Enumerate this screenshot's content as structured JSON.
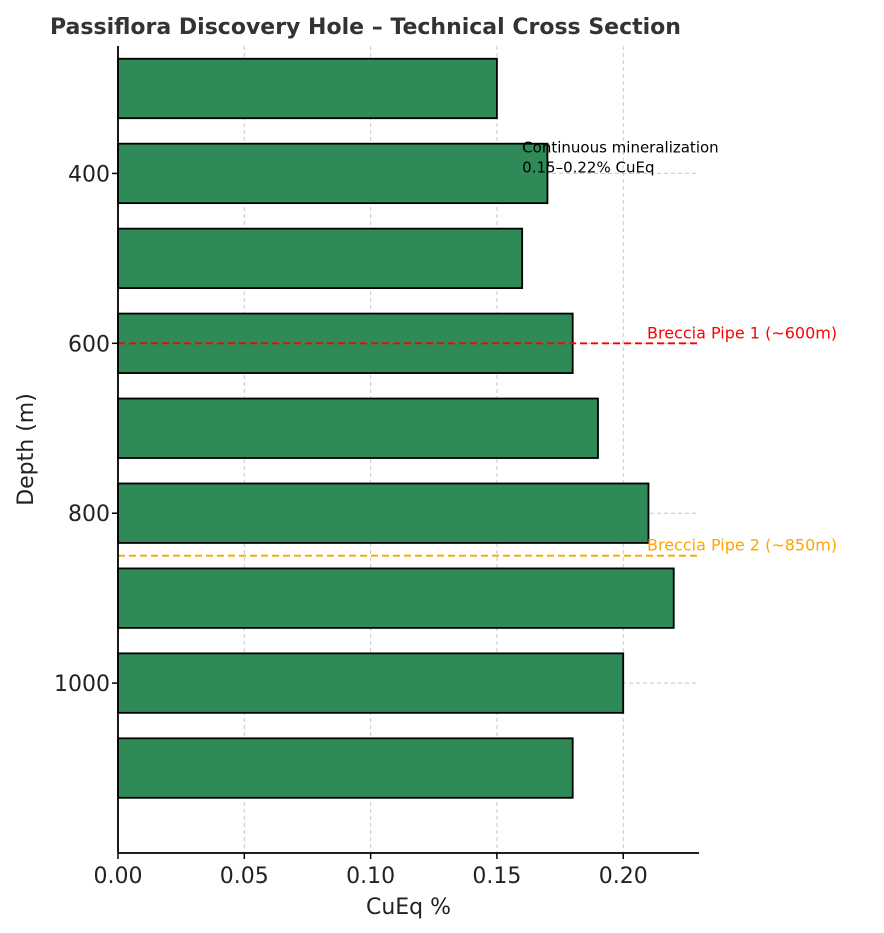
{
  "chart_data": {
    "type": "bar",
    "orientation": "horizontal",
    "title": "Passiflora Discovery Hole – Technical Cross Section",
    "xlabel": "CuEq %",
    "ylabel": "Depth (m)",
    "xlim": [
      0,
      0.23
    ],
    "ylim": [
      1200,
      250
    ],
    "y_inverted": true,
    "x_ticks": [
      "0.00",
      "0.05",
      "0.10",
      "0.15",
      "0.20"
    ],
    "x_tick_values": [
      0,
      0.05,
      0.1,
      0.15,
      0.2
    ],
    "y_ticks": [
      "400",
      "600",
      "800",
      "1000"
    ],
    "y_tick_values": [
      400,
      600,
      800,
      1000
    ],
    "grid": "dashed, major ticks",
    "bar_color": "#2e8b57",
    "bar_edge_color": "#000000",
    "bar_thickness_depth": 70,
    "depths": [
      300,
      400,
      500,
      600,
      700,
      800,
      900,
      1000,
      1100
    ],
    "values": [
      0.15,
      0.17,
      0.16,
      0.18,
      0.19,
      0.21,
      0.22,
      0.2,
      0.18
    ],
    "reference_lines": [
      {
        "depth": 600,
        "label": "Breccia Pipe 1 (~600m)",
        "color": "#ff0000"
      },
      {
        "depth": 850,
        "label": "Breccia Pipe 2 (~850m)",
        "color": "#ffa500"
      }
    ],
    "annotation": {
      "lines": [
        "Continuous mineralization",
        "0.15–0.22% CuEq"
      ],
      "x": 0.16,
      "depth": 400
    }
  }
}
